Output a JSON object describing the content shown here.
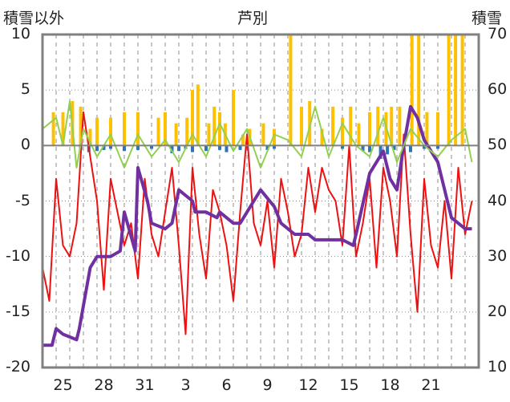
{
  "chart_data": {
    "type": "line",
    "title": "芦別",
    "left_axis_label": "積雪以外",
    "right_axis_label": "積雪",
    "left_ylim": [
      -20,
      10
    ],
    "left_ticks": [
      "10",
      "5",
      "0",
      "-5",
      "-10",
      "-15",
      "-20"
    ],
    "right_ylim": [
      10,
      70
    ],
    "right_ticks": [
      "70",
      "60",
      "50",
      "40",
      "30",
      "20",
      "10"
    ],
    "x_ticks": [
      "25",
      "28",
      "31",
      "3",
      "6",
      "9",
      "12",
      "15",
      "18",
      "21"
    ],
    "grid": "dashed vertical at day boundaries, dotted horizontal",
    "colors": {
      "temperature": "#ee1111",
      "snow_depth": "#7030a0",
      "precip_bars": "#ffc000",
      "green_line": "#92d050",
      "blue_bars": "#2e75b6",
      "axes": "#808080"
    },
    "series": [
      {
        "name": "",
        "axis": "left",
        "style": "red-line",
        "x": [
          0,
          0.5,
          1.0,
          1.5,
          2.0,
          2.5,
          3.0,
          3.5,
          4.0,
          4.5,
          5.0,
          5.5,
          6.0,
          6.5,
          7.0,
          7.5,
          8.0,
          8.5,
          9.0,
          9.5,
          10.0,
          10.5,
          11.0,
          11.5,
          12.0,
          12.5,
          13.0,
          13.5,
          14.0,
          14.5,
          15.0,
          15.5,
          16.0,
          16.5,
          17.0,
          17.5,
          18.0,
          18.5,
          19.0,
          19.5,
          20.0,
          20.5,
          21.0,
          21.5,
          22.0,
          22.5,
          23.0,
          23.5,
          24.0,
          24.5,
          25.0,
          25.5,
          26.0,
          26.5,
          27.0,
          27.5,
          28.0,
          28.5,
          29.0,
          29.5,
          30.0,
          30.5,
          31.0,
          31.5
        ],
        "values": [
          -11,
          -14,
          -3,
          -9,
          -10,
          -7,
          3,
          -1,
          -5,
          -13,
          -3,
          -6,
          -9,
          -7,
          -12,
          -3,
          -8,
          -10,
          -6,
          -2,
          -9,
          -17,
          -2,
          -8,
          -12,
          -4,
          -6,
          -9,
          -14,
          -6,
          1,
          -7,
          -9,
          -5,
          -11,
          -3,
          -6,
          -10,
          -8,
          -2,
          -6,
          -2,
          -4,
          -5,
          -9,
          0,
          -10,
          -7,
          -3,
          -11,
          -2,
          -5,
          -10,
          1,
          -8,
          -15,
          -3,
          -9,
          -11,
          -5,
          -12,
          -2,
          -8,
          -5
        ]
      },
      {
        "name": "",
        "axis": "right",
        "style": "purple-line",
        "x": [
          0,
          0.7,
          1.0,
          1.5,
          2.5,
          2.7,
          3.5,
          4.0,
          5.0,
          5.7,
          6.0,
          6.8,
          7.0,
          7.7,
          8.0,
          9.0,
          9.5,
          10.0,
          11.0,
          11.2,
          12.0,
          12.8,
          13.0,
          14.0,
          14.5,
          15.5,
          16.0,
          17.0,
          17.5,
          18.5,
          19.5,
          20.0,
          21.0,
          22.0,
          22.8,
          23.0,
          24.0,
          25.0,
          25.5,
          26.0,
          26.5,
          27.0,
          27.5,
          28.0,
          29.0,
          29.5,
          30.0,
          31.0,
          31.5
        ],
        "values": [
          14,
          14,
          17,
          16,
          15,
          17,
          28,
          30,
          30,
          31,
          38,
          31,
          46,
          40,
          36,
          35,
          36,
          42,
          40,
          38,
          38,
          37,
          38,
          36,
          36,
          40,
          42,
          39,
          36,
          34,
          34,
          33,
          33,
          33,
          32,
          34,
          45,
          49,
          44,
          42,
          50,
          57,
          55,
          51,
          47,
          42,
          37,
          35,
          35
        ]
      },
      {
        "name": "",
        "axis": "left",
        "style": "green-line",
        "x": [
          0,
          1.0,
          1.5,
          2.0,
          2.5,
          3.0,
          4.0,
          5.0,
          6.0,
          7.0,
          8.0,
          9.0,
          10.0,
          11.0,
          12.0,
          13.0,
          14.0,
          15.0,
          16.0,
          17.0,
          18.0,
          19.0,
          20.0,
          21.0,
          22.0,
          23.0,
          24.0,
          25.0,
          26.0,
          27.0,
          28.0,
          29.0,
          30.0,
          31.0,
          31.5
        ],
        "values": [
          1.5,
          2.5,
          0,
          4.0,
          -2.0,
          1.5,
          -1.0,
          1.0,
          -2.0,
          1.0,
          -1.0,
          0.5,
          -1.5,
          1.0,
          -1.0,
          2.0,
          -0.5,
          1.5,
          -2.0,
          1.0,
          0.5,
          -1.0,
          3.5,
          -1.0,
          2.0,
          0,
          -1.0,
          2.5,
          -1.5,
          1.5,
          0,
          -1.0,
          0.5,
          1.5,
          -1.5
        ]
      },
      {
        "name": "",
        "axis": "left",
        "style": "orange-bars",
        "x": [
          0.8,
          1.5,
          2.2,
          2.8,
          3.5,
          4.0,
          5.0,
          6.0,
          7.0,
          8.5,
          9.0,
          9.8,
          10.6,
          11.0,
          11.4,
          12.2,
          12.6,
          13.0,
          13.4,
          14.0,
          14.7,
          15.2,
          16.2,
          17.0,
          18.2,
          19.0,
          19.6,
          20.5,
          21.3,
          22.0,
          22.6,
          23.2,
          24.0,
          24.6,
          25.2,
          25.6,
          26.2,
          27.1,
          27.6,
          28.2,
          29.0,
          29.8,
          30.3,
          30.8
        ],
        "values": [
          3.0,
          3.0,
          4.0,
          3.5,
          1.5,
          2.5,
          2.5,
          3.0,
          3.0,
          2.5,
          3.0,
          2.0,
          2.5,
          5.0,
          5.5,
          2.0,
          3.5,
          3.0,
          2.0,
          5.0,
          1.0,
          1.5,
          2.0,
          1.5,
          10.0,
          3.5,
          4.0,
          1.5,
          3.5,
          2.5,
          3.5,
          2.0,
          3.0,
          3.5,
          3.0,
          3.5,
          3.5,
          10.0,
          10.0,
          3.0,
          3.0,
          10.0,
          10.0,
          10.0
        ]
      },
      {
        "name": "",
        "axis": "left",
        "style": "blue-bars",
        "x": [
          2.8,
          3.4,
          4.0,
          4.5,
          5.0,
          6.0,
          7.0,
          8.0,
          9.5,
          10.0,
          10.5,
          11.0,
          12.0,
          13.0,
          13.5,
          14.5,
          15.0,
          16.5,
          17.0,
          22.0,
          23.5,
          24.0,
          24.8,
          25.3,
          25.8,
          27.0,
          28.0,
          29.0
        ],
        "values": [
          -0.4,
          -0.6,
          -0.5,
          -0.4,
          -0.3,
          -0.5,
          -0.4,
          -0.3,
          -0.7,
          -0.5,
          -0.3,
          -0.6,
          -0.5,
          -0.4,
          -0.6,
          -0.4,
          -0.3,
          -0.4,
          -0.3,
          -0.3,
          -0.5,
          -0.6,
          -1.2,
          -0.8,
          -0.4,
          -0.6,
          -0.3,
          -0.3
        ]
      }
    ]
  }
}
